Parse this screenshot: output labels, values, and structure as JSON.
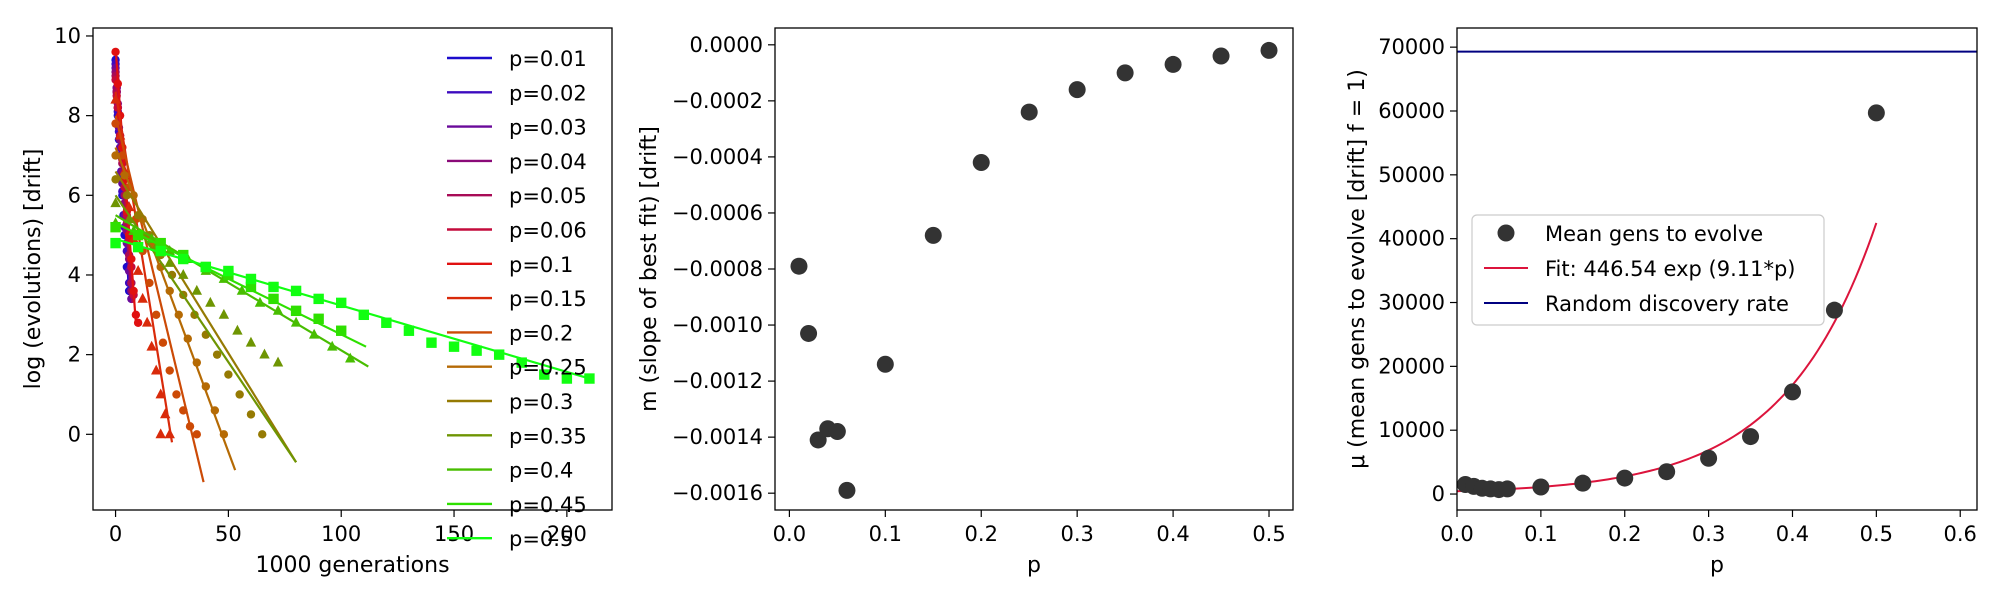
{
  "chart_data": [
    {
      "type": "scatter",
      "xlabel": "1000 generations",
      "ylabel": "log (evolutions) [drift]",
      "xlim": [
        -10,
        220
      ],
      "ylim": [
        -1.9,
        10.2
      ],
      "xticks": [
        0,
        50,
        100,
        150,
        200
      ],
      "yticks": [
        0,
        2,
        4,
        6,
        8,
        10
      ],
      "legend_position": "right",
      "series": [
        {
          "name": "p=0.01",
          "color": "#1c0ccc",
          "marker": "circle",
          "x": [
            0,
            0.5,
            1,
            1.5,
            2,
            2.5,
            3,
            3.5,
            4,
            5,
            6
          ],
          "y": [
            9.4,
            8.6,
            8.0,
            7.4,
            7.0,
            6.5,
            6.0,
            5.5,
            5.0,
            4.2,
            3.6
          ],
          "fit": [
            [
              0,
              9.5
            ],
            [
              6,
              3.5
            ]
          ]
        },
        {
          "name": "p=0.02",
          "color": "#3d0bbf",
          "marker": "circle",
          "x": [
            0,
            0.5,
            1,
            1.5,
            2,
            2.5,
            3,
            4,
            5,
            6
          ],
          "y": [
            9.3,
            8.7,
            8.1,
            7.6,
            7.0,
            6.6,
            6.1,
            5.2,
            4.6,
            3.8
          ],
          "fit": [
            [
              0,
              9.4
            ],
            [
              6.5,
              3.4
            ]
          ]
        },
        {
          "name": "p=0.03",
          "color": "#6a0a9a",
          "marker": "circle",
          "x": [
            0,
            0.5,
            1,
            1.5,
            2,
            3,
            4,
            5,
            6,
            7
          ],
          "y": [
            9.2,
            8.6,
            8.2,
            7.7,
            7.2,
            6.3,
            5.5,
            4.8,
            4.1,
            3.4
          ],
          "fit": [
            [
              0,
              9.3
            ],
            [
              7,
              3.3
            ]
          ]
        },
        {
          "name": "p=0.04",
          "color": "#8a0a78",
          "marker": "circle",
          "x": [
            0,
            0.5,
            1,
            2,
            3,
            4,
            5,
            6,
            7
          ],
          "y": [
            9.1,
            8.7,
            8.3,
            7.4,
            6.6,
            5.8,
            5.1,
            4.4,
            3.6
          ],
          "fit": [
            [
              0,
              9.2
            ],
            [
              7,
              3.4
            ]
          ]
        },
        {
          "name": "p=0.05",
          "color": "#a80b56",
          "marker": "circle",
          "x": [
            0,
            0.5,
            1,
            2,
            3,
            4,
            5,
            6,
            7
          ],
          "y": [
            9.0,
            8.6,
            8.2,
            7.5,
            6.8,
            6.0,
            5.3,
            4.5,
            3.8
          ],
          "fit": [
            [
              0,
              9.0
            ],
            [
              7.5,
              3.3
            ]
          ]
        },
        {
          "name": "p=0.06",
          "color": "#c40b3c",
          "marker": "circle",
          "x": [
            0,
            0.5,
            1,
            2,
            3,
            4,
            5,
            6,
            7,
            8
          ],
          "y": [
            8.9,
            8.5,
            8.2,
            7.5,
            6.9,
            6.2,
            5.5,
            4.9,
            4.2,
            3.5
          ],
          "fit": [
            [
              0,
              9.0
            ],
            [
              8,
              3.4
            ]
          ]
        },
        {
          "name": "p=0.1",
          "color": "#e01010",
          "marker": "circle",
          "x": [
            0,
            1,
            2,
            3,
            4,
            5,
            6,
            7,
            8,
            9,
            10
          ],
          "y": [
            9.6,
            8.8,
            8.0,
            7.2,
            6.4,
            5.6,
            5.0,
            4.4,
            3.6,
            3.0,
            2.8
          ],
          "fit": [
            [
              0,
              9.7
            ],
            [
              9,
              2.8
            ]
          ]
        },
        {
          "name": "p=0.15",
          "color": "#d92a0a",
          "marker": "triangle",
          "x": [
            0,
            2,
            4,
            6,
            8,
            10,
            12,
            14,
            16,
            18,
            20,
            22,
            24,
            20
          ],
          "y": [
            8.4,
            7.5,
            6.6,
            5.7,
            4.9,
            4.1,
            3.4,
            2.8,
            2.2,
            1.6,
            1.0,
            0.5,
            0.0,
            0.0
          ],
          "fit": [
            [
              0,
              8.6
            ],
            [
              25,
              -0.2
            ]
          ]
        },
        {
          "name": "p=0.2",
          "color": "#cc4a06",
          "marker": "circle",
          "x": [
            0,
            3,
            6,
            9,
            12,
            15,
            18,
            21,
            24,
            27,
            30,
            33,
            36
          ],
          "y": [
            7.8,
            7.0,
            6.2,
            5.4,
            4.6,
            3.8,
            3.0,
            2.3,
            1.6,
            1.0,
            0.6,
            0.2,
            0.0
          ],
          "fit": [
            [
              0,
              8.0
            ],
            [
              39,
              -1.2
            ]
          ]
        },
        {
          "name": "p=0.25",
          "color": "#b56a04",
          "marker": "circle",
          "x": [
            0,
            4,
            8,
            12,
            16,
            20,
            24,
            28,
            32,
            36,
            40,
            44,
            48
          ],
          "y": [
            7.0,
            6.5,
            6.0,
            5.4,
            4.8,
            4.2,
            3.6,
            3.0,
            2.4,
            1.8,
            1.2,
            0.6,
            0.0
          ],
          "fit": [
            [
              0,
              7.2
            ],
            [
              53,
              -0.9
            ]
          ]
        },
        {
          "name": "p=0.3",
          "color": "#957a03",
          "marker": "circle",
          "x": [
            0,
            5,
            10,
            15,
            20,
            25,
            30,
            35,
            40,
            45,
            50,
            55,
            60,
            65
          ],
          "y": [
            6.4,
            6.0,
            5.5,
            5.0,
            4.5,
            4.0,
            3.5,
            3.0,
            2.5,
            2.0,
            1.5,
            1.0,
            0.5,
            0.0
          ],
          "fit": [
            [
              0,
              6.6
            ],
            [
              80,
              -0.7
            ]
          ]
        },
        {
          "name": "p=0.35",
          "color": "#6e9502",
          "marker": "triangle",
          "x": [
            0,
            6,
            12,
            18,
            24,
            30,
            36,
            42,
            48,
            54,
            60,
            66,
            72
          ],
          "y": [
            5.8,
            5.4,
            5.0,
            4.7,
            4.3,
            4.0,
            3.6,
            3.3,
            3.0,
            2.6,
            2.3,
            2.0,
            1.8
          ],
          "fit": [
            [
              0,
              6.0
            ],
            [
              80,
              -0.7
            ]
          ]
        },
        {
          "name": "p=0.4",
          "color": "#48bd01",
          "marker": "triangle",
          "x": [
            0,
            8,
            16,
            24,
            32,
            40,
            48,
            56,
            64,
            72,
            80,
            88,
            96,
            104
          ],
          "y": [
            5.3,
            5.1,
            4.9,
            4.6,
            4.4,
            4.1,
            3.9,
            3.6,
            3.3,
            3.1,
            2.8,
            2.5,
            2.2,
            1.9
          ],
          "fit": [
            [
              0,
              5.5
            ],
            [
              112,
              1.7
            ]
          ]
        },
        {
          "name": "p=0.45",
          "color": "#2ee000",
          "marker": "square",
          "x": [
            0,
            10,
            20,
            30,
            40,
            50,
            60,
            70,
            80,
            90,
            100
          ],
          "y": [
            5.2,
            5.0,
            4.8,
            4.5,
            4.2,
            4.0,
            3.7,
            3.4,
            3.1,
            2.9,
            2.6
          ],
          "fit": [
            [
              0,
              5.3
            ],
            [
              111,
              2.2
            ]
          ]
        },
        {
          "name": "p=0.5",
          "color": "#11ff11",
          "marker": "square",
          "x": [
            0,
            10,
            20,
            30,
            40,
            50,
            60,
            70,
            80,
            90,
            100,
            110,
            120,
            130,
            140,
            150,
            160,
            170,
            180,
            190,
            200,
            210
          ],
          "y": [
            4.8,
            4.7,
            4.6,
            4.4,
            4.2,
            4.1,
            3.9,
            3.7,
            3.6,
            3.4,
            3.3,
            3.0,
            2.8,
            2.6,
            2.3,
            2.2,
            2.1,
            2.0,
            1.8,
            1.5,
            1.4,
            1.4
          ],
          "fit": [
            [
              0,
              4.9
            ],
            [
              210,
              1.4
            ]
          ]
        }
      ]
    },
    {
      "type": "scatter",
      "xlabel": "p",
      "ylabel": "m (slope of best fit) [drift]",
      "xlim": [
        -0.015,
        0.525
      ],
      "ylim": [
        -0.00166,
        6e-05
      ],
      "xticks": [
        0.0,
        0.1,
        0.2,
        0.3,
        0.4,
        0.5
      ],
      "xtick_labels": [
        "0.0",
        "0.1",
        "0.2",
        "0.3",
        "0.4",
        "0.5"
      ],
      "yticks": [
        0,
        -0.0002,
        -0.0004,
        -0.0006,
        -0.0008,
        -0.001,
        -0.0012,
        -0.0014,
        -0.0016
      ],
      "ytick_labels": [
        "0.0000",
        "−0.0002",
        "−0.0004",
        "−0.0006",
        "−0.0008",
        "−0.0010",
        "−0.0012",
        "−0.0014",
        "−0.0016"
      ],
      "series": [
        {
          "name": "",
          "color": "#333333",
          "x": [
            0.01,
            0.02,
            0.03,
            0.04,
            0.05,
            0.06,
            0.1,
            0.15,
            0.2,
            0.25,
            0.3,
            0.35,
            0.4,
            0.45,
            0.5
          ],
          "y": [
            -0.00079,
            -0.00103,
            -0.00141,
            -0.00137,
            -0.00138,
            -0.00159,
            -0.00114,
            -0.00068,
            -0.00042,
            -0.00024,
            -0.00016,
            -0.0001,
            -7e-05,
            -4e-05,
            -2e-05
          ]
        }
      ]
    },
    {
      "type": "scatter",
      "xlabel": "p",
      "ylabel": "μ (mean gens to evolve [drift] f = 1)",
      "xlim": [
        0,
        0.62
      ],
      "ylim": [
        -2500,
        73000
      ],
      "xticks": [
        0.0,
        0.1,
        0.2,
        0.3,
        0.4,
        0.5,
        0.6
      ],
      "xtick_labels": [
        "0.0",
        "0.1",
        "0.2",
        "0.3",
        "0.4",
        "0.5",
        "0.6"
      ],
      "yticks": [
        0,
        10000,
        20000,
        30000,
        40000,
        50000,
        60000,
        70000
      ],
      "legend_position": "center-left",
      "fit_params": {
        "a": 446.54,
        "b": 9.11,
        "x_range": [
          0.0,
          0.5
        ]
      },
      "random_rate": 69300,
      "series": [
        {
          "name": "Mean gens to evolve",
          "color": "#333333",
          "x": [
            0.01,
            0.02,
            0.03,
            0.04,
            0.05,
            0.06,
            0.1,
            0.15,
            0.2,
            0.25,
            0.3,
            0.35,
            0.4,
            0.45,
            0.5
          ],
          "y": [
            1500,
            1200,
            900,
            800,
            700,
            800,
            1100,
            1700,
            2500,
            3500,
            5600,
            9000,
            16000,
            28800,
            59700
          ]
        },
        {
          "name": "Fit: 446.54 exp (9.11*p)",
          "color": "#dc143c"
        },
        {
          "name": "Random discovery rate",
          "color": "#000080"
        }
      ]
    }
  ]
}
